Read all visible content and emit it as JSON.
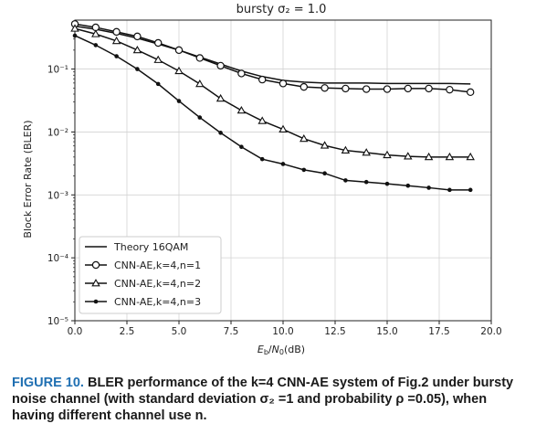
{
  "chart_data": {
    "type": "line",
    "title": "bursty σ₂ = 1.0",
    "xlabel": "Eb/N0(dB)",
    "ylabel": "Block Error Rate (BLER)",
    "xlim": [
      0,
      20
    ],
    "ylim": [
      1e-05,
      0.6
    ],
    "yscale": "log",
    "x_ticks": [
      "0.0",
      "2.5",
      "5.0",
      "7.5",
      "10.0",
      "12.5",
      "15.0",
      "17.5",
      "20.0"
    ],
    "y_ticks": [
      "10⁻¹",
      "10⁻²",
      "10⁻³",
      "10⁻⁴",
      "10⁻⁵"
    ],
    "grid": true,
    "legend": "bottom-left",
    "series": [
      {
        "name": "Theory 16QAM",
        "marker": "none",
        "x": [
          0,
          1,
          2,
          3,
          4,
          5,
          6,
          7,
          8,
          9,
          10,
          11,
          12,
          13,
          14,
          15,
          16,
          17,
          18,
          19
        ],
        "y": [
          0.48,
          0.43,
          0.37,
          0.31,
          0.25,
          0.2,
          0.155,
          0.12,
          0.093,
          0.076,
          0.066,
          0.062,
          0.06,
          0.06,
          0.06,
          0.059,
          0.059,
          0.059,
          0.059,
          0.058
        ]
      },
      {
        "name": "CNN-AE,k=4,n=1",
        "marker": "circle",
        "x": [
          0,
          1,
          2,
          3,
          4,
          5,
          6,
          7,
          8,
          9,
          10,
          11,
          12,
          13,
          14,
          15,
          16,
          17,
          18,
          19
        ],
        "y": [
          0.52,
          0.46,
          0.39,
          0.33,
          0.26,
          0.2,
          0.15,
          0.113,
          0.085,
          0.068,
          0.059,
          0.052,
          0.05,
          0.049,
          0.048,
          0.048,
          0.049,
          0.049,
          0.047,
          0.043
        ]
      },
      {
        "name": "CNN-AE,k=4,n=2",
        "marker": "triangle",
        "x": [
          0,
          1,
          2,
          3,
          4,
          5,
          6,
          7,
          8,
          9,
          10,
          11,
          12,
          13,
          14,
          15,
          16,
          17,
          18,
          19
        ],
        "y": [
          0.44,
          0.36,
          0.28,
          0.2,
          0.14,
          0.093,
          0.058,
          0.034,
          0.022,
          0.015,
          0.011,
          0.0078,
          0.0061,
          0.0051,
          0.0047,
          0.0043,
          0.0041,
          0.004,
          0.004,
          0.004
        ]
      },
      {
        "name": "CNN-AE,k=4,n=3",
        "marker": "dot",
        "x": [
          0,
          1,
          2,
          3,
          4,
          5,
          6,
          7,
          8,
          9,
          10,
          11,
          12,
          13,
          14,
          15,
          16,
          17,
          18,
          19
        ],
        "y": [
          0.34,
          0.24,
          0.16,
          0.1,
          0.058,
          0.031,
          0.017,
          0.0097,
          0.0058,
          0.0037,
          0.0031,
          0.0025,
          0.0022,
          0.0017,
          0.0016,
          0.0015,
          0.0014,
          0.0013,
          0.0012,
          0.0012
        ]
      }
    ]
  },
  "caption": {
    "label": "FIGURE 10.",
    "text": "BLER performance of the k=4 CNN-AE system of Fig.2 under bursty noise channel (with standard deviation σ₂ =1 and probability ρ =0.05), when having different channel use n."
  }
}
